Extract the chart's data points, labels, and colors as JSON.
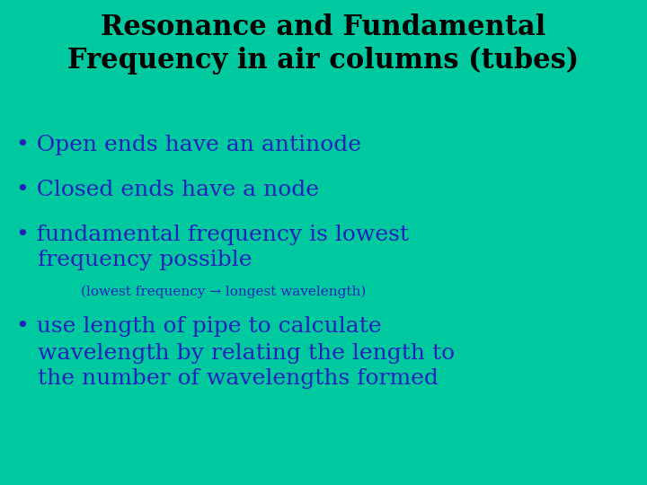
{
  "background_color": "#00C9A0",
  "title_line1": "Resonance and Fundamental",
  "title_line2": "Frequency in air columns (tubes)",
  "title_color": "#000000",
  "title_fontsize": 22,
  "bullet_color": "#2222BB",
  "bullet_fontsize": 18,
  "sub_fontsize": 11,
  "bullet1": "Open ends have an antinode",
  "bullet2": "Closed ends have a node",
  "bullet3_line1": "fundamental frequency is lowest",
  "bullet3_line2": "frequency possible",
  "sub_note": "(lowest frequency → longest wavelength)",
  "bullet4_line1": "use length of pipe to calculate",
  "bullet4_line2": "wavelength by relating the length to",
  "bullet4_line3": "the number of wavelengths formed",
  "bullet_marker": "•"
}
